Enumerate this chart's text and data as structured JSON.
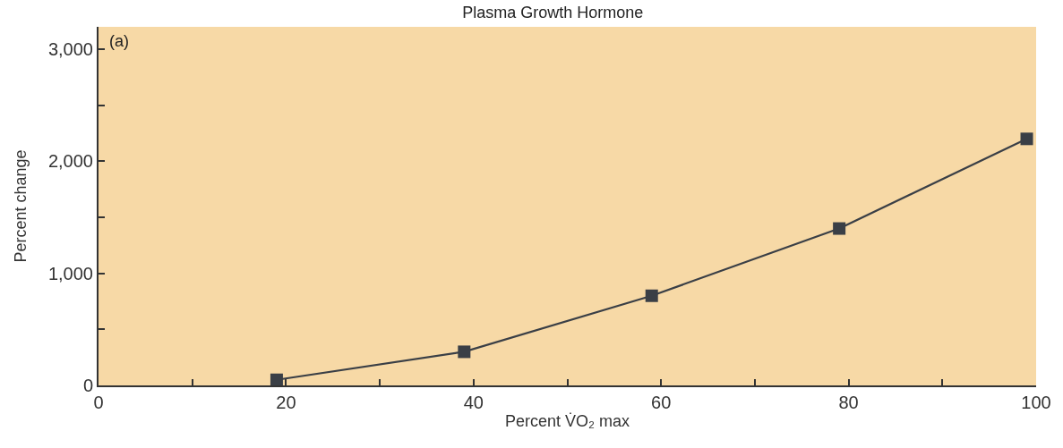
{
  "chart_data": {
    "type": "line",
    "title": "Plasma Growth Hormone",
    "xlabel": "Percent V̇O₂ max",
    "ylabel": "Percent change",
    "annotations": [
      "(a)"
    ],
    "x": [
      19,
      39,
      59,
      79,
      99
    ],
    "series": [
      {
        "color": "#3a3f46",
        "values": [
          50,
          300,
          800,
          1400,
          2200
        ]
      }
    ],
    "xlim": [
      0,
      100
    ],
    "ylim": [
      0,
      3200
    ],
    "xticks": [
      0,
      {
        "value": 10,
        "label": null
      },
      20,
      {
        "value": 30,
        "label": null
      },
      40,
      {
        "value": 50,
        "label": null
      },
      60,
      {
        "value": 70,
        "label": null
      },
      80,
      {
        "value": 90,
        "label": null
      },
      100
    ],
    "yticks": [
      0,
      {
        "value": 500,
        "label": null
      },
      {
        "value": 1000,
        "label": "1,000"
      },
      {
        "value": 1500,
        "label": null
      },
      {
        "value": 2000,
        "label": "2,000"
      },
      {
        "value": 2500,
        "label": null
      },
      {
        "value": 3000,
        "label": "3,000"
      }
    ],
    "marker": "square",
    "line_style": "solid"
  }
}
